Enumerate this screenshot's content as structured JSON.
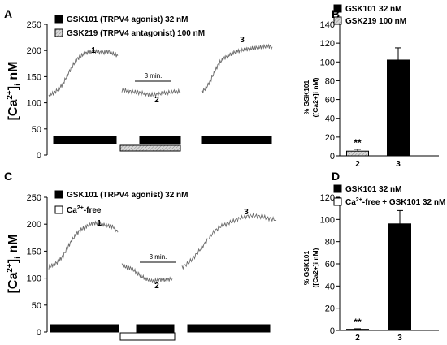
{
  "colors": {
    "black": "#000000",
    "trace": "#6b6b6b",
    "hatch_fill": "#cfcfcf",
    "white": "#ffffff"
  },
  "chart_data": [
    {
      "panel": "A",
      "type": "line",
      "ylabel_base": "[Ca",
      "ylabel_sup": "2+",
      "ylabel_close": "]",
      "ylabel_sub": "i",
      "ylabel_unit": " nM",
      "ylim": [
        0,
        250
      ],
      "yticks": [
        "0",
        "50",
        "100",
        "150",
        "200",
        "250"
      ],
      "legend": [
        {
          "label": "GSK101 (TRPV4 agonist) 32 nM",
          "swatch": "solid"
        },
        {
          "label": "GSK219 (TRPV4 antagonist) 100 nM",
          "swatch": "hatched"
        }
      ],
      "segment_labels": [
        "1",
        "2",
        "3"
      ],
      "scale_bar": "3 min.",
      "series": [
        {
          "segment": "1",
          "x": [
            0,
            2,
            4,
            6,
            8,
            10,
            12,
            14,
            16,
            18,
            20,
            22,
            24,
            26,
            28,
            30
          ],
          "values": [
            115,
            118,
            125,
            135,
            152,
            168,
            182,
            190,
            195,
            197,
            199,
            197,
            196,
            198,
            194,
            190
          ]
        },
        {
          "segment": "2",
          "x": [
            0,
            2,
            4,
            6,
            8,
            10,
            12,
            14,
            16,
            18,
            20,
            22
          ],
          "values": [
            124,
            123,
            121,
            120,
            118,
            116,
            115,
            117,
            119,
            120,
            122,
            121
          ]
        },
        {
          "segment": "3",
          "x": [
            0,
            2,
            4,
            6,
            8,
            10,
            12,
            14,
            16,
            18,
            20,
            22,
            24,
            26,
            28,
            30,
            32
          ],
          "values": [
            120,
            128,
            142,
            160,
            176,
            185,
            190,
            195,
            198,
            200,
            202,
            204,
            205,
            206,
            207,
            208,
            207
          ]
        }
      ]
    },
    {
      "panel": "B",
      "type": "bar",
      "ylabel": "% GSK101",
      "ylabel2": "([Ca2+]i nM)",
      "ylim": [
        0,
        140
      ],
      "yticks": [
        "0",
        "20",
        "40",
        "60",
        "80",
        "100",
        "120",
        "140"
      ],
      "categories": [
        "2",
        "3"
      ],
      "values": [
        5,
        102
      ],
      "errors": [
        2,
        13
      ],
      "legend": [
        {
          "label": "GSK101 32 nM",
          "swatch": "solid"
        },
        {
          "label": "GSK219 100 nM",
          "swatch": "hatched"
        }
      ],
      "annotations": [
        "**"
      ]
    },
    {
      "panel": "C",
      "type": "line",
      "ylabel_base": "[Ca",
      "ylabel_sup": "2+",
      "ylabel_close": "]",
      "ylabel_sub": "i",
      "ylabel_unit": " nM",
      "ylim": [
        0,
        250
      ],
      "yticks": [
        "0",
        "50",
        "100",
        "150",
        "200",
        "250"
      ],
      "legend": [
        {
          "label": "GSK101 (TRPV4 agonist) 32 nM",
          "swatch": "solid"
        },
        {
          "label": "-free",
          "prefix": "Ca",
          "sup": "2+",
          "swatch": "open"
        }
      ],
      "segment_labels": [
        "1",
        "2",
        "3"
      ],
      "scale_bar": "3 min.",
      "series": [
        {
          "segment": "1",
          "x": [
            0,
            2,
            4,
            6,
            8,
            10,
            12,
            14,
            16,
            18,
            20,
            22,
            24,
            26,
            28,
            30
          ],
          "values": [
            120,
            125,
            130,
            140,
            155,
            170,
            182,
            190,
            195,
            200,
            202,
            201,
            199,
            197,
            195,
            185
          ]
        },
        {
          "segment": "2",
          "x": [
            0,
            2,
            4,
            6,
            8,
            10,
            12,
            14,
            16,
            18,
            20,
            22
          ],
          "values": [
            125,
            120,
            118,
            112,
            105,
            100,
            96,
            94,
            98,
            96,
            97,
            99
          ]
        },
        {
          "segment": "3",
          "x": [
            0,
            4,
            8,
            12,
            16,
            20,
            24,
            28,
            32,
            36,
            40,
            44,
            48,
            52,
            56,
            60
          ],
          "values": [
            120,
            128,
            140,
            155,
            170,
            185,
            195,
            200,
            205,
            210,
            214,
            216,
            215,
            213,
            210,
            208
          ]
        }
      ]
    },
    {
      "panel": "D",
      "type": "bar",
      "ylabel": "% GSK101",
      "ylabel2": "([Ca2+]i nM)",
      "ylim": [
        0,
        120
      ],
      "yticks": [
        "0",
        "20",
        "40",
        "60",
        "80",
        "100",
        "120"
      ],
      "categories": [
        "2",
        "3"
      ],
      "values": [
        1,
        96
      ],
      "errors": [
        0.5,
        12
      ],
      "legend": [
        {
          "label": "GSK101 32 nM",
          "swatch": "solid"
        },
        {
          "label": "-free + GSK101 32 nM",
          "prefix": "Ca",
          "sup": "2+",
          "swatch": "open"
        }
      ],
      "annotations": [
        "**"
      ]
    }
  ]
}
